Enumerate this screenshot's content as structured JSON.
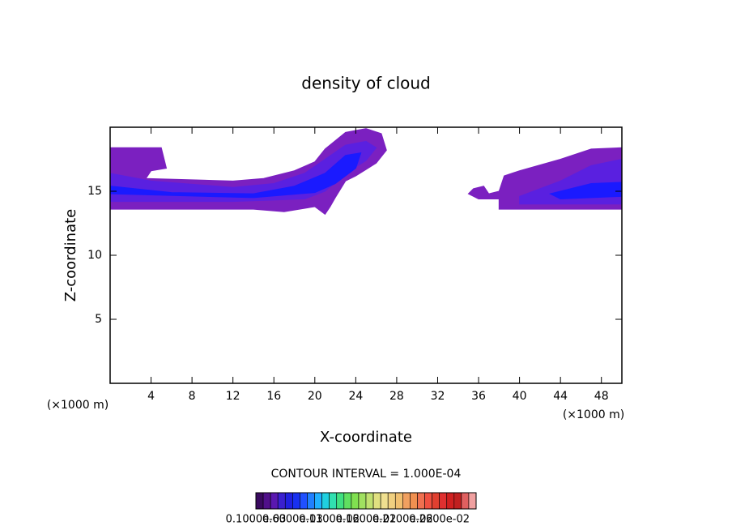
{
  "chart_data": {
    "type": "contour",
    "title": "density of cloud",
    "xlabel": "X-coordinate",
    "ylabel": "Z-coordinate",
    "xunit_label": "(×1000 m)",
    "yunit_label": "(×1000 m)",
    "contour_interval": "CONTOUR INTERVAL = 1.000E-04",
    "xlim": [
      0,
      50
    ],
    "ylim": [
      0,
      20
    ],
    "xticks": [
      4,
      8,
      12,
      16,
      20,
      24,
      28,
      32,
      36,
      40,
      44,
      48
    ],
    "yticks": [
      5,
      10,
      15
    ],
    "regions": [
      {
        "level": 0.0001,
        "color": "#7b20c0",
        "points": [
          [
            0,
            18.4
          ],
          [
            5,
            18.4
          ],
          [
            5.5,
            16.8
          ],
          [
            4,
            16.6
          ],
          [
            3.5,
            16.0
          ],
          [
            12,
            15.8
          ],
          [
            15,
            16.0
          ],
          [
            18,
            16.6
          ],
          [
            20,
            17.3
          ],
          [
            21,
            18.3
          ],
          [
            23,
            19.6
          ],
          [
            25,
            19.9
          ],
          [
            26.5,
            19.5
          ],
          [
            27,
            18.2
          ],
          [
            26,
            17.2
          ],
          [
            25,
            16.7
          ],
          [
            24,
            16.2
          ],
          [
            23,
            15.8
          ],
          [
            22,
            14.5
          ],
          [
            21.5,
            13.8
          ],
          [
            21,
            13.2
          ],
          [
            20,
            13.8
          ],
          [
            17,
            13.4
          ],
          [
            14,
            13.6
          ],
          [
            8,
            13.6
          ],
          [
            0,
            13.6
          ]
        ]
      },
      {
        "level": 0.0001,
        "color": "#7b20c0",
        "points": [
          [
            35,
            14.8
          ],
          [
            35.5,
            15.2
          ],
          [
            36.5,
            15.4
          ],
          [
            37,
            14.8
          ],
          [
            38,
            15.0
          ],
          [
            38.5,
            16.2
          ],
          [
            40,
            16.6
          ],
          [
            44,
            17.5
          ],
          [
            47,
            18.3
          ],
          [
            50,
            18.4
          ],
          [
            50,
            13.6
          ],
          [
            38,
            13.6
          ],
          [
            38,
            14.4
          ],
          [
            36,
            14.4
          ]
        ]
      },
      {
        "level": 0.0004,
        "color": "#5a20e0",
        "points": [
          [
            0,
            16.4
          ],
          [
            4,
            15.8
          ],
          [
            12,
            15.3
          ],
          [
            16,
            15.6
          ],
          [
            19,
            16.4
          ],
          [
            21,
            17.5
          ],
          [
            23,
            18.6
          ],
          [
            25,
            18.9
          ],
          [
            26,
            18.4
          ],
          [
            25,
            17.4
          ],
          [
            23,
            16.4
          ],
          [
            21,
            15.0
          ],
          [
            19,
            14.4
          ],
          [
            12,
            14.2
          ],
          [
            0,
            14.2
          ]
        ]
      },
      {
        "level": 0.0004,
        "color": "#5a20e0",
        "points": [
          [
            40,
            14.6
          ],
          [
            44,
            15.8
          ],
          [
            47,
            17.0
          ],
          [
            50,
            17.5
          ],
          [
            50,
            14.0
          ],
          [
            40,
            14.0
          ]
        ]
      },
      {
        "level": 0.0008,
        "color": "#1a1aff",
        "points": [
          [
            0,
            15.4
          ],
          [
            6,
            14.9
          ],
          [
            14,
            14.8
          ],
          [
            18,
            15.4
          ],
          [
            21,
            16.4
          ],
          [
            23,
            17.8
          ],
          [
            24.5,
            18.0
          ],
          [
            24,
            16.8
          ],
          [
            22,
            15.6
          ],
          [
            20,
            14.9
          ],
          [
            14,
            14.5
          ],
          [
            0,
            14.8
          ]
        ]
      },
      {
        "level": 0.0008,
        "color": "#1a1aff",
        "points": [
          [
            43,
            14.8
          ],
          [
            47,
            15.6
          ],
          [
            50,
            15.7
          ],
          [
            50,
            14.6
          ],
          [
            44,
            14.4
          ]
        ]
      }
    ],
    "colorbar": {
      "levels": [
        0.0001,
        0.0002,
        0.0003,
        0.0004,
        0.0005,
        0.0006,
        0.0007,
        0.0008,
        0.0009,
        0.001,
        0.0011,
        0.0012,
        0.0013,
        0.0014,
        0.0015,
        0.0016,
        0.0017,
        0.0018,
        0.0019,
        0.002,
        0.0021,
        0.0022,
        0.0023,
        0.0024,
        0.0025,
        0.0026,
        0.0027,
        0.0028,
        0.0029,
        0.003
      ],
      "colors": [
        "#3a0a60",
        "#50108a",
        "#5a18b0",
        "#3a20d0",
        "#2020e0",
        "#1830f0",
        "#2050ff",
        "#2080ff",
        "#20b0ff",
        "#20d0e0",
        "#30e0b0",
        "#40e080",
        "#60e060",
        "#80e050",
        "#a0e060",
        "#c0e070",
        "#e0e080",
        "#f0e090",
        "#f0d080",
        "#f0c070",
        "#f0a060",
        "#f09050",
        "#f07050",
        "#f05040",
        "#e04030",
        "#e03030",
        "#d02020",
        "#c02020",
        "#e06060",
        "#f0a0a0"
      ],
      "ticks": [
        {
          "value": 0.0001,
          "label": "0.1000e-03"
        },
        {
          "value": 0.0006,
          "label": "0.6000e-03"
        },
        {
          "value": 0.0011,
          "label": "0.1100e-02"
        },
        {
          "value": 0.0016,
          "label": "0.1600e-02"
        },
        {
          "value": 0.0021,
          "label": "0.2100e-02"
        },
        {
          "value": 0.0026,
          "label": "0.2600e-02"
        }
      ]
    }
  }
}
